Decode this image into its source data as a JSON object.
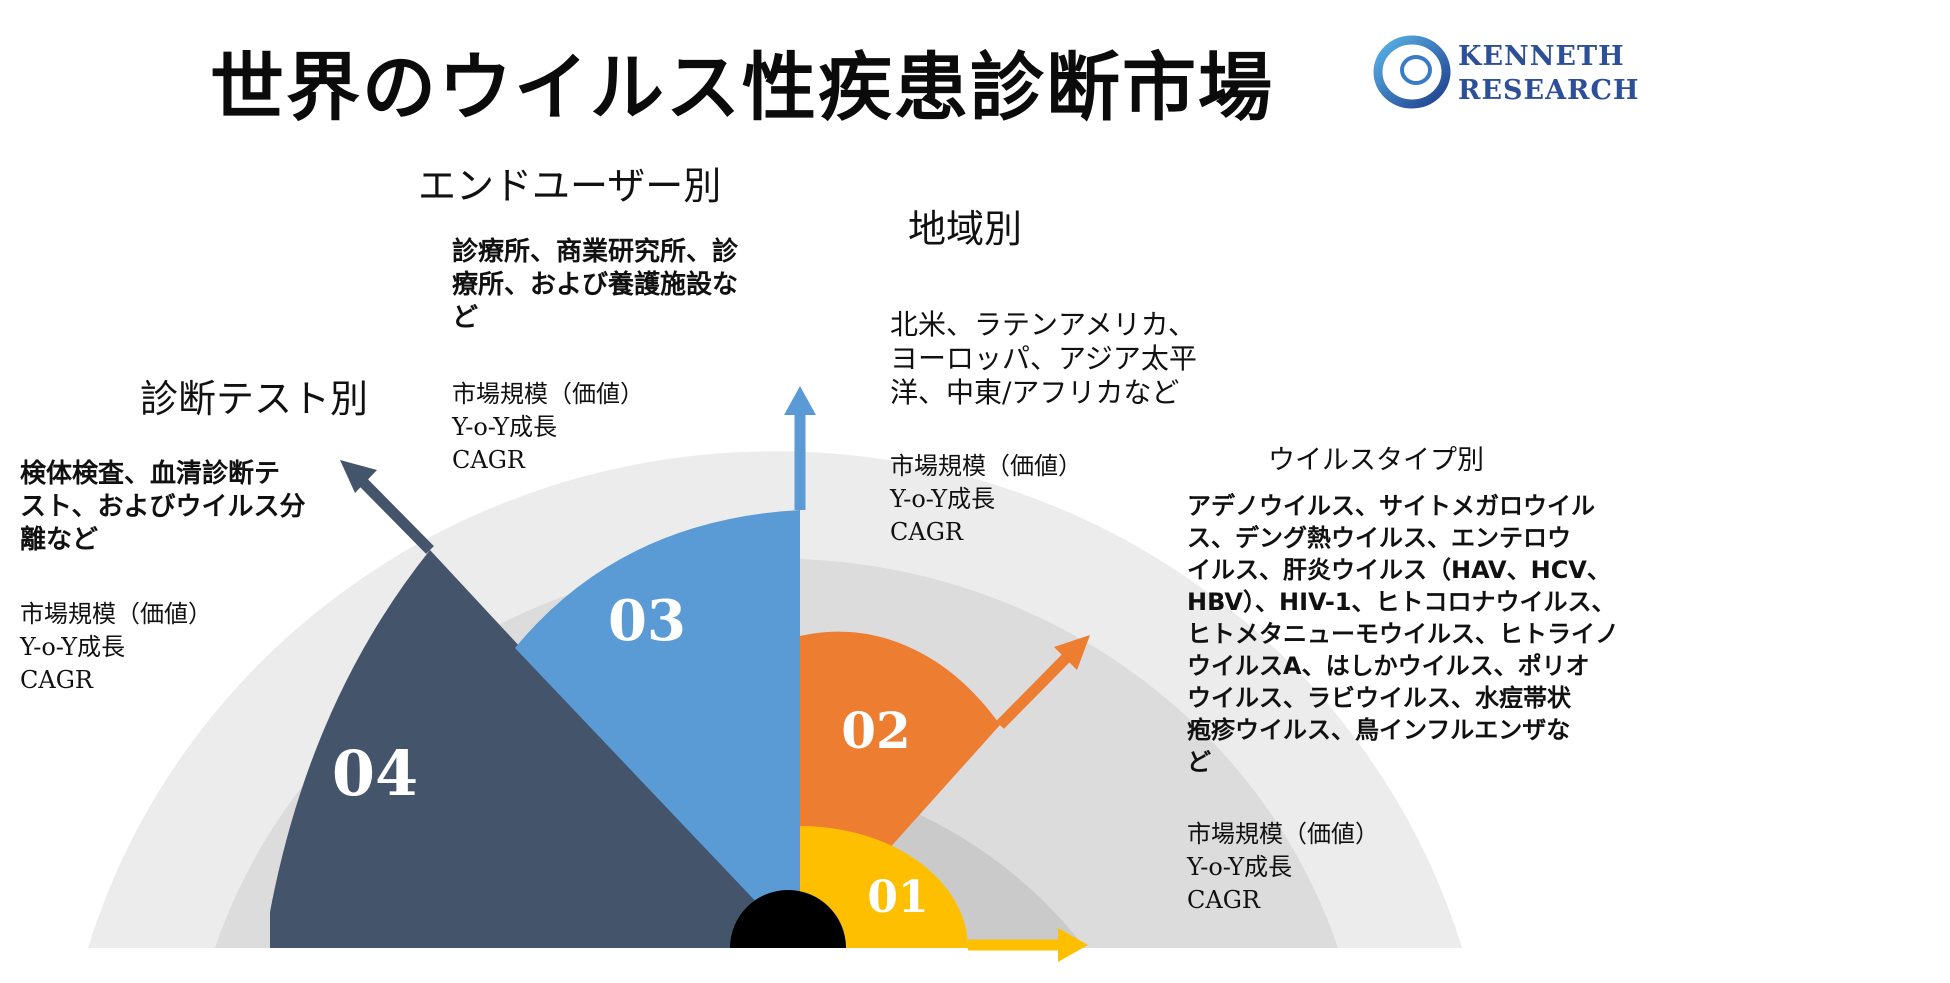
{
  "title": "世界のウイルス性疾患診断市場",
  "logo": {
    "line1": "KENNETH",
    "line2": "RESEARCH",
    "icon": "swirl-logo-icon"
  },
  "colors": {
    "seg01": "#fdbf00",
    "seg02": "#ed7d31",
    "seg03": "#5b9bd5",
    "seg04": "#44546a",
    "ring_outer": "#ececec",
    "ring_middle": "#dcdcdc",
    "ring_inner": "#cacaca",
    "hub": "#000000"
  },
  "segments": [
    {
      "number": "01"
    },
    {
      "number": "02"
    },
    {
      "number": "03"
    },
    {
      "number": "04"
    }
  ],
  "sections": {
    "diagnostic_test": {
      "heading": "診断テスト別",
      "desc": [
        "検体検査、血清診断テ",
        "スト、およびウイルス分",
        "離など"
      ],
      "metrics": [
        "市場規模（価値）",
        "Y-o-Y成長",
        "CAGR"
      ]
    },
    "end_user": {
      "heading": "エンドユーザー別",
      "desc": [
        "診療所、商業研究所、診",
        "療所、および養護施設な",
        "ど"
      ],
      "metrics": [
        "市場規模（価値）",
        "Y-o-Y成長",
        "CAGR"
      ]
    },
    "region": {
      "heading": "地域別",
      "desc": [
        "北米、ラテンアメリカ、",
        "ヨーロッパ、アジア太平",
        "洋、中東/アフリカなど"
      ],
      "metrics": [
        "市場規模（価値）",
        "Y-o-Y成長",
        "CAGR"
      ]
    },
    "virus_type": {
      "heading": "ウイルスタイプ別",
      "desc": [
        "アデノウイルス、サイトメガロウイル",
        "ス、デング熱ウイルス、エンテロウ",
        "イルス、肝炎ウイルス（HAV、HCV、",
        "HBV）、HIV-1、ヒトコロナウイルス、",
        "ヒトメタニューモウイルス、ヒトライノ",
        "ウイルスA、はしかウイルス、ポリオ",
        "ウイルス、ラビウイルス、水痘帯状",
        "疱疹ウイルス、鳥インフルエンザな",
        "ど"
      ],
      "metrics": [
        "市場規模（価値）",
        "Y-o-Y成長",
        "CAGR"
      ]
    }
  }
}
